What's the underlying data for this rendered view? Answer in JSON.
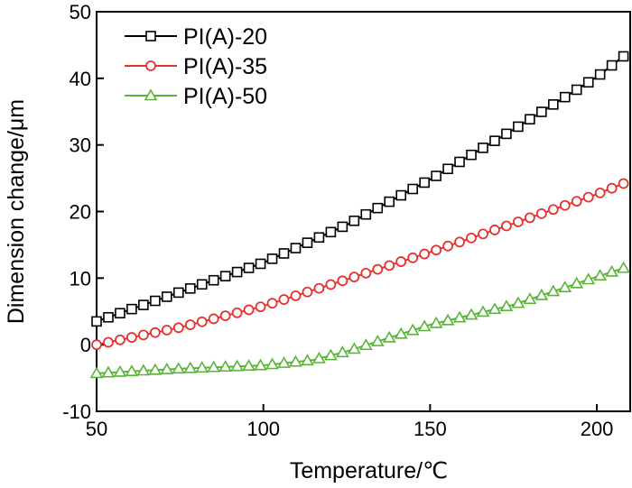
{
  "chart_data": {
    "type": "line",
    "title": "",
    "xlabel": "Temperature/℃",
    "ylabel": "Dimension change/μm",
    "xlim": [
      50,
      210
    ],
    "ylim": [
      -10,
      50
    ],
    "xticks": [
      50,
      100,
      150,
      200
    ],
    "yticks": [
      -10,
      0,
      10,
      20,
      30,
      40,
      50
    ],
    "grid": false,
    "legend_position": "top-left",
    "series": [
      {
        "name": "PI(A)-20",
        "color": "#000000",
        "marker": "square",
        "points": [
          [
            50,
            3.5
          ],
          [
            100,
            12.3
          ],
          [
            125,
            18.0
          ],
          [
            150,
            24.8
          ],
          [
            175,
            32.3
          ],
          [
            200,
            40.2
          ],
          [
            208,
            43.3
          ]
        ]
      },
      {
        "name": "PI(A)-35",
        "color": "#e8312f",
        "marker": "circle",
        "points": [
          [
            50,
            0.0
          ],
          [
            75,
            2.6
          ],
          [
            100,
            5.8
          ],
          [
            125,
            9.8
          ],
          [
            150,
            13.9
          ],
          [
            175,
            18.2
          ],
          [
            200,
            22.6
          ],
          [
            208,
            24.2
          ]
        ]
      },
      {
        "name": "PI(A)-50",
        "color": "#5ab438",
        "marker": "triangle",
        "points": [
          [
            50,
            -4.3
          ],
          [
            75,
            -3.6
          ],
          [
            100,
            -3.1
          ],
          [
            115,
            -2.3
          ],
          [
            125,
            -1.0
          ],
          [
            150,
            3.0
          ],
          [
            175,
            6.0
          ],
          [
            200,
            10.2
          ],
          [
            208,
            11.5
          ]
        ]
      }
    ]
  }
}
